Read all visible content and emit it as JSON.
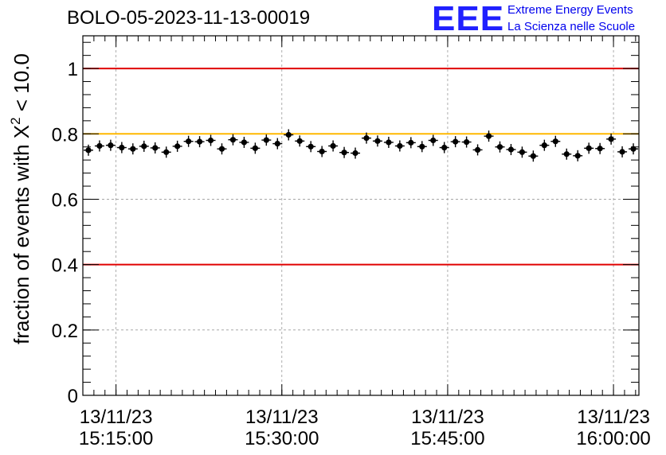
{
  "chart_data": {
    "type": "scatter",
    "title": "BOLO-05-2023-11-13-00019",
    "ylabel": "fraction of events with χ² < 10.0",
    "ylabel_parts": {
      "prefix": "fraction of events with ",
      "symbol": "X",
      "sup": "2",
      "suffix": " < 10.0"
    },
    "xlabel": "",
    "ylim": [
      0,
      1.1
    ],
    "xlim_minutes": [
      12,
      62.3
    ],
    "yticks": [
      {
        "value": 0,
        "label": "0"
      },
      {
        "value": 0.2,
        "label": "0.2"
      },
      {
        "value": 0.4,
        "label": "0.4"
      },
      {
        "value": 0.6,
        "label": "0.6"
      },
      {
        "value": 0.8,
        "label": "0.8"
      },
      {
        "value": 1.0,
        "label": "1"
      }
    ],
    "xticks": [
      {
        "minute": 15,
        "date": "13/11/23",
        "time": "15:15:00"
      },
      {
        "minute": 30,
        "date": "13/11/23",
        "time": "15:30:00"
      },
      {
        "minute": 45,
        "date": "13/11/23",
        "time": "15:45:00"
      },
      {
        "minute": 60,
        "date": "13/11/23",
        "time": "16:00:00"
      }
    ],
    "x_time_start": "13/11/23 15:12:00",
    "reference_lines": [
      {
        "y": 1.0,
        "color": "#e00000"
      },
      {
        "y": 0.8,
        "color": "#ffb800"
      },
      {
        "y": 0.4,
        "color": "#e00000"
      }
    ],
    "grid": true,
    "series": [
      {
        "marker_color": "#000000",
        "y": [
          0.75,
          0.763,
          0.765,
          0.758,
          0.754,
          0.762,
          0.757,
          0.744,
          0.762,
          0.777,
          0.776,
          0.78,
          0.754,
          0.782,
          0.774,
          0.756,
          0.781,
          0.77,
          0.797,
          0.778,
          0.761,
          0.746,
          0.763,
          0.743,
          0.741,
          0.787,
          0.778,
          0.774,
          0.763,
          0.773,
          0.761,
          0.78,
          0.758,
          0.776,
          0.775,
          0.751,
          0.793,
          0.76,
          0.752,
          0.744,
          0.732,
          0.765,
          0.777,
          0.738,
          0.733,
          0.756,
          0.755,
          0.784,
          0.745,
          0.754
        ]
      }
    ]
  },
  "logo": {
    "mark": "EEE",
    "line1": "Extreme Energy Events",
    "line2": "La Scienza nelle Scuole"
  }
}
